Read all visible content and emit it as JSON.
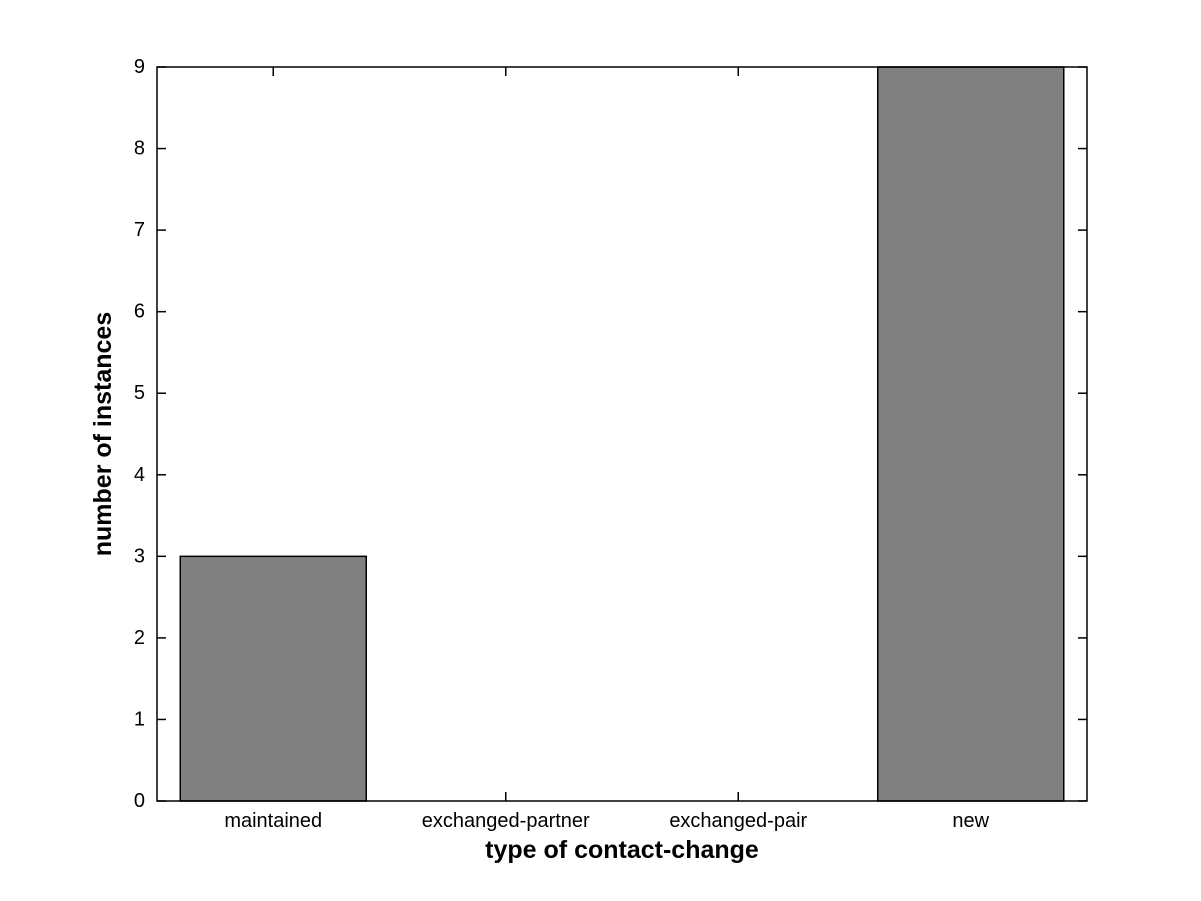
{
  "figure": {
    "background_color": "#ffffff"
  },
  "chart_data": {
    "type": "bar",
    "title": "",
    "categories": [
      "maintained",
      "exchanged-partner",
      "exchanged-pair",
      "new"
    ],
    "values": [
      3,
      0,
      0,
      9
    ],
    "xlabel": "type of contact-change",
    "ylabel": "number of instances",
    "ylim": [
      0,
      9
    ],
    "yticks": [
      0,
      1,
      2,
      3,
      4,
      5,
      6,
      7,
      8,
      9
    ],
    "xlim": [
      0.5,
      4.5
    ],
    "bar_width_fraction": 0.8,
    "bar_fill_color": "#808080",
    "bar_edge_color": "#000000",
    "axis_color": "#000000",
    "tick_direction": "in",
    "grid": false,
    "legend": null,
    "box": true
  }
}
